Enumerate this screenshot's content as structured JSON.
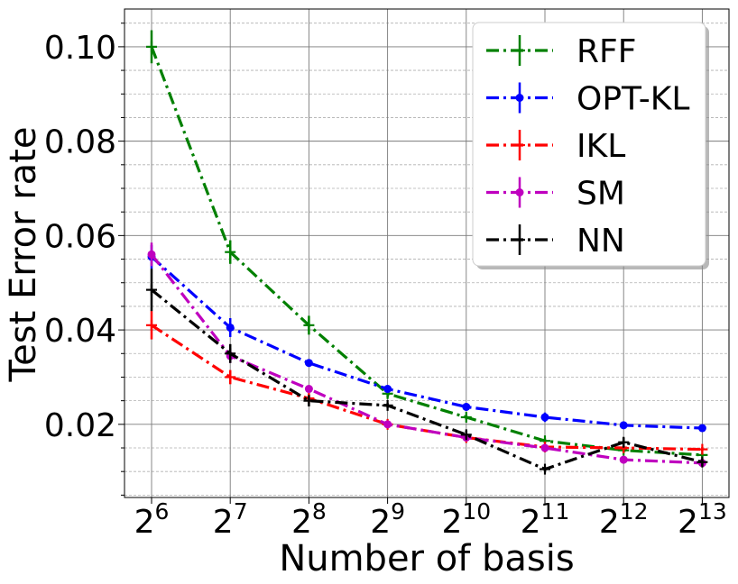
{
  "chart_data": {
    "type": "line",
    "xlabel": "Number of basis",
    "ylabel": "Test Error rate",
    "x_ticks": [
      {
        "base": "2",
        "exp": "6"
      },
      {
        "base": "2",
        "exp": "7"
      },
      {
        "base": "2",
        "exp": "8"
      },
      {
        "base": "2",
        "exp": "9"
      },
      {
        "base": "2",
        "exp": "10"
      },
      {
        "base": "2",
        "exp": "11"
      },
      {
        "base": "2",
        "exp": "12"
      },
      {
        "base": "2",
        "exp": "13"
      }
    ],
    "x": [
      64,
      128,
      256,
      512,
      1024,
      2048,
      4096,
      8192
    ],
    "x_scale": "log2",
    "y_ticks": [
      "0.02",
      "0.04",
      "0.06",
      "0.08",
      "0.10"
    ],
    "ylim": [
      0.0045,
      0.108
    ],
    "grid": true,
    "legend_position": "top-right",
    "series": [
      {
        "name": "RFF",
        "color": "#008000",
        "marker": "plus",
        "values": [
          0.1,
          0.0565,
          0.041,
          0.0265,
          0.0215,
          0.0165,
          0.0145,
          0.0135
        ],
        "errors": [
          0.0035,
          0.0025,
          0.002,
          0.0008,
          0.0005,
          0.0005,
          0.0005,
          0.0005
        ]
      },
      {
        "name": "OPT-KL",
        "color": "#0000ff",
        "marker": "dot",
        "values": [
          0.0555,
          0.0405,
          0.033,
          0.0275,
          0.0237,
          0.0215,
          0.0198,
          0.0192
        ],
        "errors": [
          0.0025,
          0.002,
          0.0005,
          0.0008,
          0.0008,
          0.001,
          0.0005,
          0.0005
        ]
      },
      {
        "name": "IKL",
        "color": "#ff0000",
        "marker": "plus",
        "values": [
          0.041,
          0.03,
          0.0255,
          0.02,
          0.0172,
          0.0152,
          0.015,
          0.0147
        ],
        "errors": [
          0.003,
          0.0015,
          0.001,
          0.0008,
          0.0008,
          0.0005,
          0.0005,
          0.0005
        ]
      },
      {
        "name": "SM",
        "color": "#bf00bf",
        "marker": "dot",
        "values": [
          0.056,
          0.0345,
          0.0275,
          0.02,
          0.0172,
          0.015,
          0.0125,
          0.0118
        ],
        "errors": [
          0.0025,
          0.0015,
          0.0005,
          0.0005,
          0.0005,
          0.0005,
          0.0008,
          0.0005
        ]
      },
      {
        "name": "NN",
        "color": "#000000",
        "marker": "plus",
        "values": [
          0.0485,
          0.035,
          0.025,
          0.024,
          0.0178,
          0.0105,
          0.0162,
          0.012
        ],
        "errors": [
          0.0045,
          0.002,
          0.0012,
          0.0005,
          0.0008,
          0.0005,
          0.001,
          0.0008
        ]
      }
    ]
  }
}
